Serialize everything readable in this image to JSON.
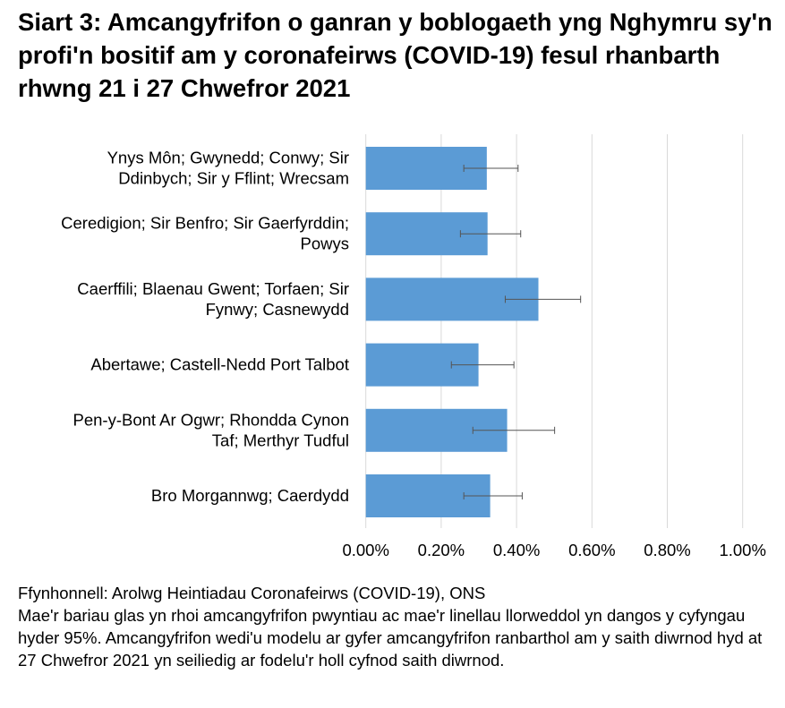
{
  "chart_data": {
    "type": "bar",
    "orientation": "horizontal",
    "title": "Siart 3: Amcangyfrifon o ganran y boblogaeth yng Nghymru sy'n profi'n bositif am y coronafeirws (COVID-19) fesul rhanbarth rhwng 21 i 27 Chwefror 2021",
    "categories": [
      [
        "Ynys Môn; Gwynedd; Conwy; Sir",
        "Ddinbych; Sir y Fflint; Wrecsam"
      ],
      [
        "Ceredigion; Sir Benfro; Sir Gaerfyrddin;",
        "Powys"
      ],
      [
        "Caerffili; Blaenau Gwent; Torfaen; Sir",
        "Fynwy; Casnewydd"
      ],
      [
        "Abertawe; Castell-Nedd Port Talbot"
      ],
      [
        "Pen-y-Bont Ar Ogwr; Rhondda Cynon",
        "Taf; Merthyr Tudful"
      ],
      [
        "Bro Morgannwg; Caerdydd"
      ]
    ],
    "values": [
      0.321,
      0.323,
      0.458,
      0.299,
      0.375,
      0.33
    ],
    "ci_lower": [
      0.26,
      0.251,
      0.37,
      0.227,
      0.284,
      0.26
    ],
    "ci_upper": [
      0.404,
      0.411,
      0.57,
      0.393,
      0.501,
      0.415
    ],
    "unit": "%",
    "xlim": [
      0,
      1.0
    ],
    "xticks": [
      "0.00%",
      "0.20%",
      "0.40%",
      "0.60%",
      "0.80%",
      "1.00%"
    ],
    "grid": true,
    "bar_color": "#5b9bd5",
    "error_bar_color": "#555555"
  },
  "notes": {
    "source": "Ffynhonnell: Arolwg Heintiadau Coronafeirws (COVID-19), ONS",
    "description": "Mae'r bariau glas yn rhoi amcangyfrifon pwyntiau ac mae'r linellau llorweddol yn dangos y cyfyngau hyder 95%. Amcangyfrifon wedi'u modelu ar gyfer amcangyfrifon ranbarthol am y saith diwrnod hyd at 27 Chwefror 2021 yn seiliedig ar fodelu'r holl cyfnod saith diwrnod."
  }
}
